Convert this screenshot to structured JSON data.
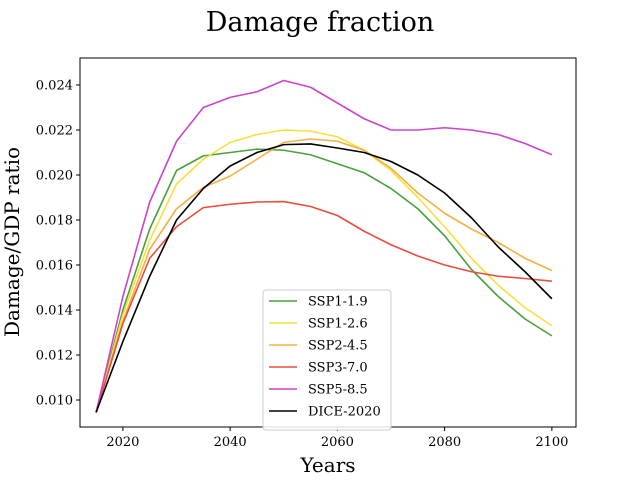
{
  "chart_data": {
    "type": "line",
    "title": "Damage fraction",
    "xlabel": "Years",
    "ylabel": "Damage/GDP ratio",
    "xlim": [
      2012,
      2104.5
    ],
    "ylim": [
      0.0088,
      0.0252
    ],
    "xticks": [
      2020,
      2040,
      2060,
      2080,
      2100
    ],
    "yticks": [
      0.01,
      0.012,
      0.014,
      0.016,
      0.018,
      0.02,
      0.022,
      0.024
    ],
    "ytick_labels": [
      "0.010",
      "0.012",
      "0.014",
      "0.016",
      "0.018",
      "0.020",
      "0.022",
      "0.024"
    ],
    "xtick_labels": [
      "2020",
      "2040",
      "2060",
      "2080",
      "2100"
    ],
    "grid": false,
    "legend_placement": "lower-center",
    "x": [
      2015,
      2020,
      2025,
      2030,
      2035,
      2040,
      2045,
      2050,
      2055,
      2060,
      2065,
      2070,
      2075,
      2080,
      2085,
      2090,
      2095,
      2100
    ],
    "series": [
      {
        "name": "SSP1-1.9",
        "color": "#4aa03c",
        "values": [
          0.00945,
          0.014,
          0.0176,
          0.0202,
          0.02085,
          0.021,
          0.02115,
          0.0211,
          0.0209,
          0.0205,
          0.0201,
          0.0194,
          0.0185,
          0.0173,
          0.0158,
          0.0146,
          0.0136,
          0.01285
        ]
      },
      {
        "name": "SSP1-2.6",
        "color": "#f7e03c",
        "values": [
          0.00945,
          0.0138,
          0.0171,
          0.0196,
          0.0207,
          0.02145,
          0.0218,
          0.022,
          0.02195,
          0.0217,
          0.0211,
          0.0202,
          0.019,
          0.0177,
          0.0163,
          0.0151,
          0.0141,
          0.0133
        ]
      },
      {
        "name": "SSP2-4.5",
        "color": "#f5b041",
        "values": [
          0.00945,
          0.0135,
          0.0167,
          0.0185,
          0.01945,
          0.01995,
          0.0207,
          0.02145,
          0.0216,
          0.0215,
          0.0211,
          0.0203,
          0.0192,
          0.0183,
          0.0176,
          0.017,
          0.0163,
          0.01575
        ]
      },
      {
        "name": "SSP3-7.0",
        "color": "#e84d3d",
        "values": [
          0.00945,
          0.0134,
          0.0163,
          0.0177,
          0.01855,
          0.0187,
          0.0188,
          0.01882,
          0.0186,
          0.0182,
          0.0175,
          0.0169,
          0.0164,
          0.016,
          0.0157,
          0.0155,
          0.0154,
          0.01528
        ]
      },
      {
        "name": "SSP5-8.5",
        "color": "#cc44cc",
        "values": [
          0.00945,
          0.0146,
          0.0188,
          0.0215,
          0.023,
          0.02345,
          0.0237,
          0.0242,
          0.0239,
          0.0232,
          0.0225,
          0.022,
          0.022,
          0.0221,
          0.022,
          0.0218,
          0.0214,
          0.0209
        ]
      },
      {
        "name": "DICE-2020",
        "color": "#000000",
        "values": [
          0.00945,
          0.0126,
          0.0155,
          0.018,
          0.0194,
          0.0204,
          0.021,
          0.02135,
          0.02138,
          0.0212,
          0.021,
          0.0206,
          0.02,
          0.0192,
          0.0181,
          0.0168,
          0.0157,
          0.0145
        ]
      }
    ]
  }
}
